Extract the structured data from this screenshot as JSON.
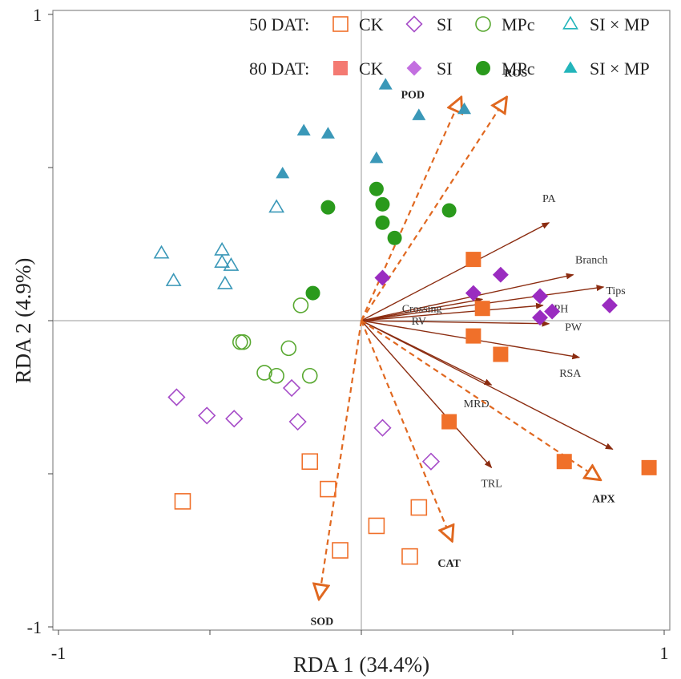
{
  "chart_data": {
    "type": "scatter",
    "title": "",
    "xlabel": "RDA 1 (34.4%)",
    "ylabel": "RDA 2 (4.9%)",
    "xlim": [
      -1,
      1
    ],
    "ylim": [
      -1,
      1
    ],
    "x_ticks": [
      {
        "value": -1,
        "label": "-1"
      },
      {
        "value": 1,
        "label": "1"
      }
    ],
    "y_ticks": [
      {
        "value": 1,
        "label": "1"
      },
      {
        "value": -1,
        "label": "-1"
      }
    ],
    "minor_tick_step": 0.5,
    "grid": false,
    "reference_lines": {
      "x": 0,
      "y": 0
    },
    "legend": {
      "position": "top-right",
      "row_labels": [
        "50 DAT:",
        "80 DAT:"
      ],
      "columns": [
        {
          "label": "CK",
          "shape": "square"
        },
        {
          "label": "SI",
          "shape": "diamond"
        },
        {
          "label": "MPc",
          "shape": "circle"
        },
        {
          "label": "SI × MP",
          "shape": "triangle"
        }
      ]
    },
    "colors": {
      "CK": "#f0702a",
      "CK_legend_filled": "#f47a72",
      "SI": "#9a2cc0",
      "SI_legend_filled": "#c36fe0",
      "SI_open": "#a64cc8",
      "MPc": "#2a9a1c",
      "MPc_open": "#58a830",
      "SI_x_MP": "#3a98b8",
      "SI_x_MP_legend": "#23b5bb",
      "arrow_brown": "#8b2c10",
      "arrow_orange": "#e06820"
    },
    "series": [
      {
        "name": "CK 50 DAT",
        "group": "CK",
        "time": "50 DAT",
        "shape": "square",
        "filled": false,
        "points": [
          [
            -0.59,
            -0.59
          ],
          [
            -0.17,
            -0.46
          ],
          [
            -0.11,
            -0.55
          ],
          [
            -0.07,
            -0.75
          ],
          [
            0.05,
            -0.67
          ],
          [
            0.16,
            -0.77
          ],
          [
            0.19,
            -0.61
          ]
        ]
      },
      {
        "name": "CK 80 DAT",
        "group": "CK",
        "time": "80 DAT",
        "shape": "square",
        "filled": true,
        "points": [
          [
            0.37,
            0.2
          ],
          [
            0.4,
            0.04
          ],
          [
            0.37,
            -0.05
          ],
          [
            0.46,
            -0.11
          ],
          [
            0.29,
            -0.33
          ],
          [
            0.67,
            -0.46
          ],
          [
            0.95,
            -0.48
          ]
        ]
      },
      {
        "name": "SI 50 DAT",
        "group": "SI",
        "time": "50 DAT",
        "shape": "diamond",
        "filled": false,
        "points": [
          [
            -0.61,
            -0.25
          ],
          [
            -0.51,
            -0.31
          ],
          [
            -0.42,
            -0.32
          ],
          [
            -0.23,
            -0.22
          ],
          [
            -0.21,
            -0.33
          ],
          [
            0.07,
            -0.35
          ],
          [
            0.23,
            -0.46
          ]
        ]
      },
      {
        "name": "SI 80 DAT",
        "group": "SI",
        "time": "80 DAT",
        "shape": "diamond",
        "filled": true,
        "points": [
          [
            0.07,
            0.14
          ],
          [
            0.37,
            0.09
          ],
          [
            0.46,
            0.15
          ],
          [
            0.59,
            0.08
          ],
          [
            0.63,
            0.03
          ],
          [
            0.59,
            0.01
          ],
          [
            0.82,
            0.05
          ]
        ]
      },
      {
        "name": "MPc 50 DAT",
        "group": "MPc",
        "time": "50 DAT",
        "shape": "circle",
        "filled": false,
        "points": [
          [
            -0.2,
            0.05
          ],
          [
            -0.4,
            -0.07
          ],
          [
            -0.39,
            -0.07
          ],
          [
            -0.24,
            -0.09
          ],
          [
            -0.32,
            -0.17
          ],
          [
            -0.28,
            -0.18
          ],
          [
            -0.17,
            -0.18
          ]
        ]
      },
      {
        "name": "MPc 80 DAT",
        "group": "MPc",
        "time": "80 DAT",
        "shape": "circle",
        "filled": true,
        "points": [
          [
            -0.11,
            0.37
          ],
          [
            -0.16,
            0.09
          ],
          [
            0.05,
            0.43
          ],
          [
            0.07,
            0.38
          ],
          [
            0.07,
            0.32
          ],
          [
            0.11,
            0.27
          ],
          [
            0.29,
            0.36
          ]
        ]
      },
      {
        "name": "SI × MP 50 DAT",
        "group": "SI x MP",
        "time": "50 DAT",
        "shape": "triangle",
        "filled": false,
        "points": [
          [
            -0.66,
            0.22
          ],
          [
            -0.62,
            0.13
          ],
          [
            -0.46,
            0.23
          ],
          [
            -0.46,
            0.19
          ],
          [
            -0.43,
            0.18
          ],
          [
            -0.45,
            0.12
          ],
          [
            -0.28,
            0.37
          ]
        ]
      },
      {
        "name": "SI × MP 80 DAT",
        "group": "SI x MP",
        "time": "80 DAT",
        "shape": "triangle",
        "filled": true,
        "points": [
          [
            -0.26,
            0.48
          ],
          [
            -0.19,
            0.62
          ],
          [
            -0.11,
            0.61
          ],
          [
            0.05,
            0.53
          ],
          [
            0.08,
            0.77
          ],
          [
            0.19,
            0.67
          ],
          [
            0.34,
            0.69
          ]
        ]
      }
    ],
    "vectors": [
      {
        "label": "PA",
        "x": 0.62,
        "y": 0.32,
        "style": "solid",
        "color": "brown",
        "label_dx": 0.0,
        "label_dy": 0.08
      },
      {
        "label": "Branch",
        "x": 0.7,
        "y": 0.15,
        "style": "solid",
        "color": "brown",
        "label_dx": 0.06,
        "label_dy": 0.05
      },
      {
        "label": "Tips",
        "x": 0.8,
        "y": 0.11,
        "style": "solid",
        "color": "brown",
        "label_dx": 0.04,
        "label_dy": -0.01
      },
      {
        "label": "Crossing",
        "x": 0.4,
        "y": 0.07,
        "style": "solid",
        "color": "brown",
        "label_dx": -0.2,
        "label_dy": -0.03
      },
      {
        "label": "PH",
        "x": 0.6,
        "y": 0.05,
        "style": "solid",
        "color": "brown",
        "label_dx": 0.06,
        "label_dy": -0.01
      },
      {
        "label": "PW",
        "x": 0.62,
        "y": -0.01,
        "style": "solid",
        "color": "brown",
        "label_dx": 0.08,
        "label_dy": -0.01
      },
      {
        "label": "RSA",
        "x": 0.72,
        "y": -0.12,
        "style": "solid",
        "color": "brown",
        "label_dx": -0.03,
        "label_dy": -0.05
      },
      {
        "label": "RV",
        "x": 0.83,
        "y": -0.42,
        "style": "solid",
        "color": "brown",
        "tip_x": 0.43,
        "tip_y": -0.21,
        "label_dx": -0.24,
        "label_dy": 0.21
      },
      {
        "label": "MRD",
        "x": 0.43,
        "y": -0.21,
        "style": "solid",
        "color": "brown",
        "label_dx": -0.05,
        "label_dy": -0.06
      },
      {
        "label": "TRL",
        "x": 0.43,
        "y": -0.48,
        "style": "solid",
        "color": "brown",
        "label_dx": 0.0,
        "label_dy": -0.05
      },
      {
        "label": "POD",
        "x": 0.33,
        "y": 0.73,
        "style": "dashed",
        "color": "orange",
        "label_dx": -0.16,
        "label_dy": 0.01
      },
      {
        "label": "ROS",
        "x": 0.48,
        "y": 0.73,
        "style": "dashed",
        "color": "orange",
        "label_dx": 0.03,
        "label_dy": 0.08
      },
      {
        "label": "APX",
        "x": 0.79,
        "y": -0.52,
        "style": "dashed",
        "color": "orange",
        "label_dx": 0.01,
        "label_dy": -0.06
      },
      {
        "label": "CAT",
        "x": 0.3,
        "y": -0.72,
        "style": "dashed",
        "color": "orange",
        "label_dx": -0.01,
        "label_dy": -0.07
      },
      {
        "label": "SOD",
        "x": -0.14,
        "y": -0.91,
        "style": "dashed",
        "color": "orange",
        "label_dx": 0.01,
        "label_dy": -0.07
      }
    ]
  }
}
